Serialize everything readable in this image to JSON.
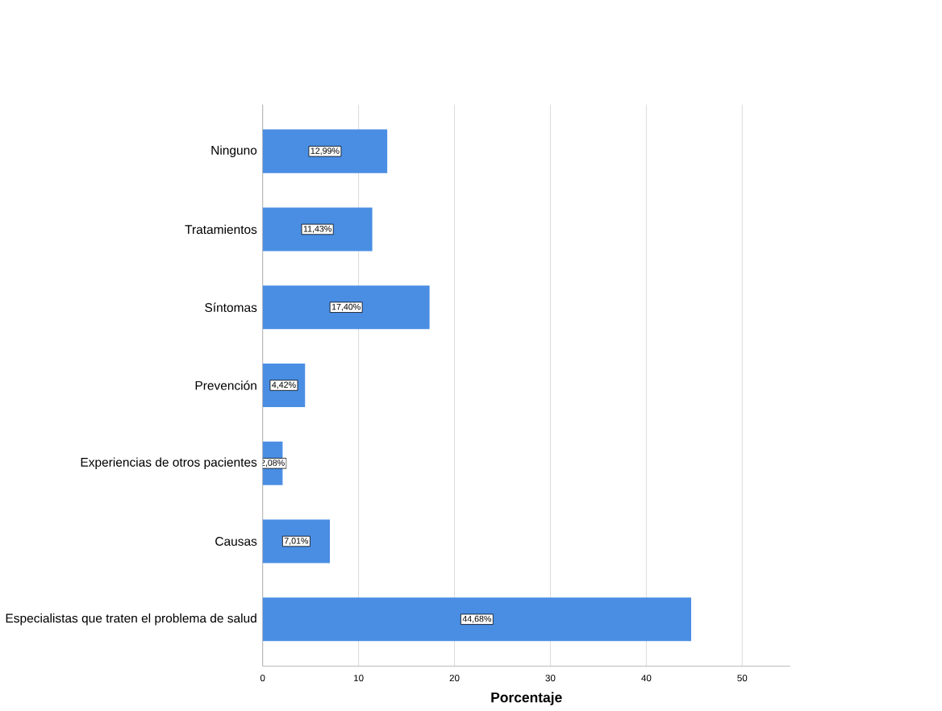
{
  "chart_data": {
    "type": "bar",
    "orientation": "horizontal",
    "xlabel": "Porcentaje",
    "categories": [
      "Ninguno",
      "Tratamientos",
      "Síntomas",
      "Prevención",
      "Experiencias de otros pacientes",
      "Causas",
      "Especialistas que traten el problema de salud"
    ],
    "values": [
      12.99,
      11.43,
      17.4,
      4.42,
      2.08,
      7.01,
      44.68
    ],
    "value_labels": [
      "12,99%",
      "11,43%",
      "17,40%",
      "4,42%",
      "2,08%",
      "7,01%",
      "44,68%"
    ],
    "color": "#4a8ee4",
    "xlim": [
      0,
      55
    ],
    "xticks": [
      0,
      10,
      20,
      30,
      40,
      50
    ],
    "grid": "x"
  }
}
